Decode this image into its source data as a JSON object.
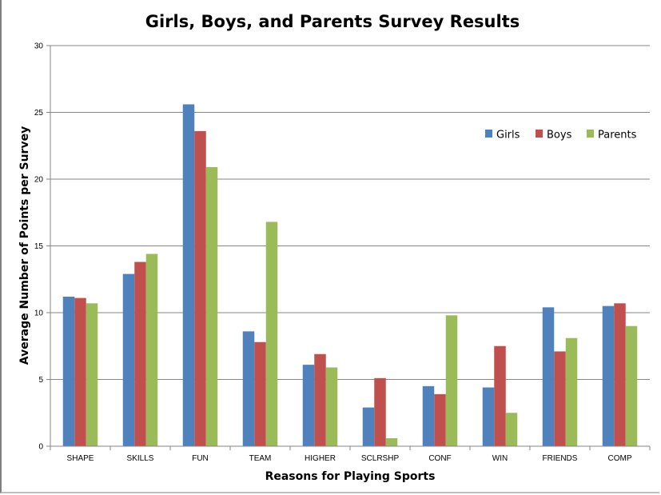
{
  "chart_data": {
    "type": "bar",
    "title": "Girls, Boys, and Parents Survey Results",
    "xlabel": "Reasons for Playing Sports",
    "ylabel": "Average Number of Points per Survey",
    "ylim": [
      0,
      30
    ],
    "yticks": [
      0,
      5,
      10,
      15,
      20,
      25,
      30
    ],
    "grid": true,
    "legend_position": "top-right",
    "categories": [
      "SHAPE",
      "SKILLS",
      "FUN",
      "TEAM",
      "HIGHER",
      "SCLRSHP",
      "CONF",
      "WIN",
      "FRIENDS",
      "COMP"
    ],
    "series": [
      {
        "name": "Girls",
        "color": "#4f81bd",
        "values": [
          11.2,
          12.9,
          25.6,
          8.6,
          6.1,
          2.9,
          4.5,
          4.4,
          10.4,
          10.5
        ]
      },
      {
        "name": "Boys",
        "color": "#c0504d",
        "values": [
          11.1,
          13.8,
          23.6,
          7.8,
          6.9,
          5.1,
          3.9,
          7.5,
          7.1,
          10.7
        ]
      },
      {
        "name": "Parents",
        "color": "#9bbb59",
        "values": [
          10.7,
          14.4,
          20.9,
          16.8,
          5.9,
          0.6,
          9.8,
          2.5,
          8.1,
          9.0
        ]
      }
    ]
  }
}
